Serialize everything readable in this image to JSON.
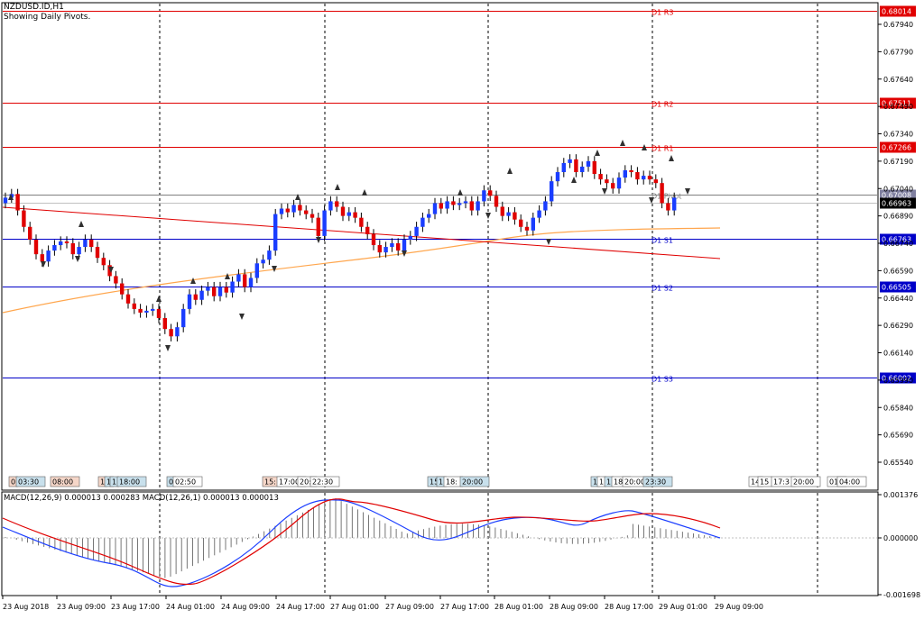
{
  "header": {
    "symbol_line": "NZDUSD.ID,H1",
    "indicator_line": "Showing Daily Pivots."
  },
  "pivots": {
    "levels": [
      {
        "label": "D1 R3",
        "value": 0.68014,
        "tag": "0.68014",
        "color": "#e00000"
      },
      {
        "label": "D1 R2",
        "value": 0.67511,
        "tag": "0.67511",
        "color": "#e00000"
      },
      {
        "label": "D1 R1",
        "value": 0.67266,
        "tag": "0.67266",
        "color": "#e00000"
      },
      {
        "label": "D1 Pivot",
        "value": 0.67008,
        "tag": "0.67008",
        "color": "#808080"
      },
      {
        "label": "D1 S1",
        "value": 0.66763,
        "tag": "0.66763",
        "color": "#0000c8"
      },
      {
        "label": "D1 S2",
        "value": 0.66505,
        "tag": "0.66505",
        "color": "#0000c8"
      },
      {
        "label": "D1 S3",
        "value": 0.66002,
        "tag": "0.66002",
        "color": "#0000c8"
      }
    ],
    "current_price_tag": "0.66963"
  },
  "price_axis": {
    "labels": [
      "0.67940",
      "0.67790",
      "0.67640",
      "0.67490",
      "0.67340",
      "0.67190",
      "0.67040",
      "0.66890",
      "0.66740",
      "0.66590",
      "0.66440",
      "0.66290",
      "0.66140",
      "0.65990",
      "0.65840",
      "0.65690",
      "0.65540"
    ]
  },
  "time_axis": {
    "labels": [
      "23 Aug 2018",
      "23 Aug 09:00",
      "23 Aug 17:00",
      "24 Aug 01:00",
      "24 Aug 09:00",
      "24 Aug 17:00",
      "27 Aug 01:00",
      "27 Aug 09:00",
      "27 Aug 17:00",
      "28 Aug 01:00",
      "28 Aug 09:00",
      "28 Aug 17:00",
      "29 Aug 01:00",
      "29 Aug 09:00"
    ]
  },
  "event_markers": [
    {
      "text": "0",
      "color": "#f5d6c8"
    },
    {
      "text": "03:30",
      "color": "#c8e0ec"
    },
    {
      "text": "08:00",
      "color": "#f5d6c8"
    },
    {
      "text": "1",
      "color": "#f5d6c8"
    },
    {
      "text": "1",
      "color": "#c8e0ec"
    },
    {
      "text": "1",
      "color": "#c8e0ec"
    },
    {
      "text": "18:00",
      "color": "#c8e0ec"
    },
    {
      "text": "0",
      "color": "#c8e0ec"
    },
    {
      "text": "02:50",
      "color": "#ffffff"
    },
    {
      "text": "15:",
      "color": "#f5d6c8"
    },
    {
      "text": "17:00",
      "color": "#ffffff"
    },
    {
      "text": "20:",
      "color": "#ffffff"
    },
    {
      "text": "22:30",
      "color": "#ffffff"
    },
    {
      "text": "15:",
      "color": "#c8e0ec"
    },
    {
      "text": "1",
      "color": "#c8e0ec"
    },
    {
      "text": "18:",
      "color": "#ffffff"
    },
    {
      "text": "20:00",
      "color": "#c8e0ec"
    },
    {
      "text": "1",
      "color": "#c8e0ec"
    },
    {
      "text": "1",
      "color": "#ffffff"
    },
    {
      "text": "1",
      "color": "#c8e0ec"
    },
    {
      "text": "18:",
      "color": "#ffffff"
    },
    {
      "text": "20:00",
      "color": "#ffffff"
    },
    {
      "text": "23:30",
      "color": "#c8e0ec"
    },
    {
      "text": "14",
      "color": "#ffffff"
    },
    {
      "text": "15",
      "color": "#ffffff"
    },
    {
      "text": "17:3",
      "color": "#ffffff"
    },
    {
      "text": "20:00",
      "color": "#ffffff"
    },
    {
      "text": "01:",
      "color": "#ffffff"
    },
    {
      "text": "04:00",
      "color": "#ffffff"
    }
  ],
  "macd": {
    "title": "MACD(12,26,9) 0.000013 0.000283 MACD(12,26,1) 0.000013 0.000013",
    "axis_labels": [
      "0.001376",
      "0.000000",
      "-0.001698"
    ]
  },
  "colors": {
    "bull": "#1a3dff",
    "bear": "#e00000",
    "ma": "#ffa64d",
    "trend": "#e00000",
    "macd_line": "#1a3dff",
    "signal_line": "#e00000"
  }
}
